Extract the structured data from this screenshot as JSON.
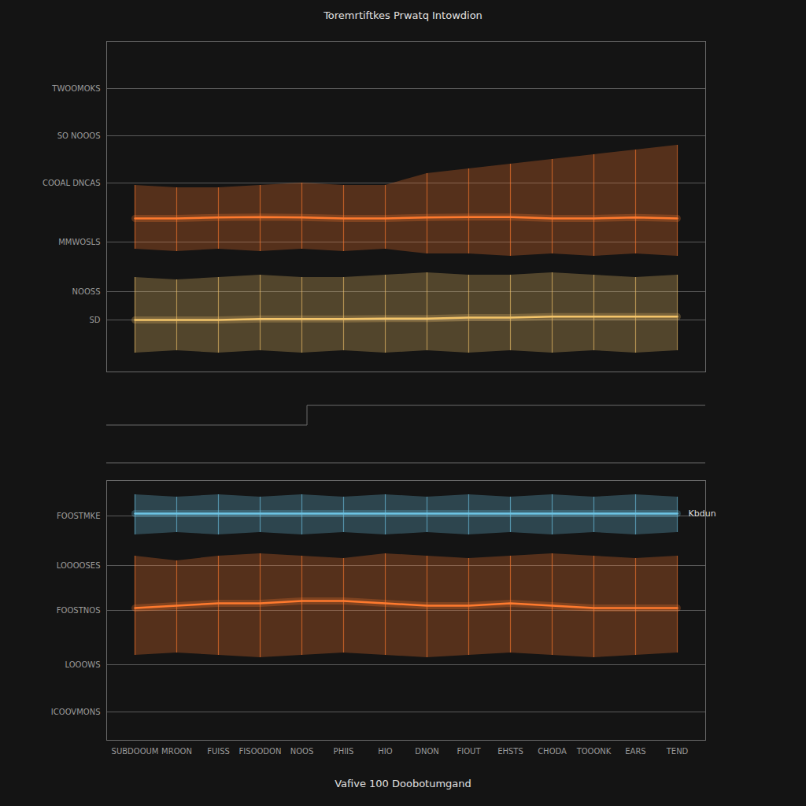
{
  "chart_data": [
    {
      "type": "line",
      "title": "Toremrtiftkes Prwatq Intowdion",
      "categories": [
        "SUBDOOUM",
        "MROON",
        "FUISS",
        "FISOODON",
        "NOOS",
        "PHIIS",
        "HIO",
        "DNON",
        "FIOUT",
        "EHSTS",
        "CHODA",
        "TOOONK",
        "EARS",
        "TEND"
      ],
      "tick_labels": "y",
      "grid": true,
      "ylim": [
        0,
        7
      ],
      "yticks": [
        {
          "value": 6,
          "label": "TWOOMOKS"
        },
        {
          "value": 5,
          "label": "SO NOOOS"
        },
        {
          "value": 4,
          "label": "COOAL DNCAS"
        },
        {
          "value": 2.75,
          "label": "MMWOSLS"
        },
        {
          "value": 1.7,
          "label": "NOOSS"
        },
        {
          "value": 1.1,
          "label": "SD"
        }
      ],
      "series": [
        {
          "color": "#ff7a2e",
          "values": [
            3.25,
            3.25,
            3.27,
            3.28,
            3.27,
            3.25,
            3.25,
            3.27,
            3.28,
            3.28,
            3.25,
            3.25,
            3.27,
            3.25
          ],
          "low": [
            2.6,
            2.55,
            2.6,
            2.55,
            2.6,
            2.55,
            2.6,
            2.5,
            2.5,
            2.45,
            2.5,
            2.45,
            2.5,
            2.45
          ],
          "high": [
            3.95,
            3.9,
            3.9,
            3.95,
            4.0,
            3.95,
            3.95,
            4.2,
            4.3,
            4.4,
            4.5,
            4.6,
            4.7,
            4.8
          ]
        },
        {
          "color": "#f4c56a",
          "values": [
            1.1,
            1.1,
            1.1,
            1.12,
            1.12,
            1.12,
            1.13,
            1.13,
            1.15,
            1.15,
            1.17,
            1.17,
            1.17,
            1.17
          ],
          "low": [
            0.4,
            0.45,
            0.4,
            0.45,
            0.4,
            0.45,
            0.4,
            0.45,
            0.4,
            0.45,
            0.4,
            0.45,
            0.4,
            0.45
          ],
          "high": [
            2.0,
            1.95,
            2.0,
            2.05,
            2.0,
            2.0,
            2.05,
            2.1,
            2.05,
            2.05,
            2.1,
            2.05,
            2.0,
            2.05
          ]
        }
      ]
    },
    {
      "type": "line",
      "xlabel": "Vafive 100 Doobotumgand",
      "categories": [
        "SUBDOOUM",
        "MROON",
        "FUISS",
        "FISOODON",
        "NOOS",
        "PHIIS",
        "HIO",
        "DNON",
        "FIOUT",
        "EHSTS",
        "CHODA",
        "TOOONK",
        "EARS",
        "TEND"
      ],
      "grid": true,
      "ylim": [
        0,
        5.5
      ],
      "yticks": [
        {
          "value": 4.75,
          "label": "FOOSTMKE"
        },
        {
          "value": 3.7,
          "label": "LOOOOSES"
        },
        {
          "value": 2.75,
          "label": "FOOSTNOS"
        },
        {
          "value": 1.6,
          "label": "LOOOWS"
        },
        {
          "value": 0.6,
          "label": "ICOOVMONS"
        }
      ],
      "series": [
        {
          "name": "Kbdun",
          "color": "#6ec6e6",
          "values": [
            4.8,
            4.8,
            4.8,
            4.8,
            4.8,
            4.8,
            4.8,
            4.8,
            4.8,
            4.8,
            4.8,
            4.8,
            4.8,
            4.8
          ],
          "low": [
            4.35,
            4.4,
            4.35,
            4.4,
            4.35,
            4.4,
            4.35,
            4.4,
            4.35,
            4.4,
            4.35,
            4.4,
            4.35,
            4.4
          ],
          "high": [
            5.2,
            5.15,
            5.2,
            5.15,
            5.2,
            5.15,
            5.2,
            5.15,
            5.2,
            5.15,
            5.2,
            5.15,
            5.2,
            5.15
          ]
        },
        {
          "color": "#ff7a2e",
          "values": [
            2.8,
            2.85,
            2.9,
            2.9,
            2.95,
            2.95,
            2.9,
            2.85,
            2.85,
            2.9,
            2.85,
            2.8,
            2.8,
            2.8
          ],
          "low": [
            1.8,
            1.85,
            1.8,
            1.75,
            1.8,
            1.85,
            1.8,
            1.75,
            1.8,
            1.85,
            1.8,
            1.75,
            1.8,
            1.85
          ],
          "high": [
            3.9,
            3.8,
            3.9,
            3.95,
            3.9,
            3.85,
            3.95,
            3.9,
            3.85,
            3.9,
            3.95,
            3.9,
            3.85,
            3.9
          ]
        }
      ]
    }
  ]
}
